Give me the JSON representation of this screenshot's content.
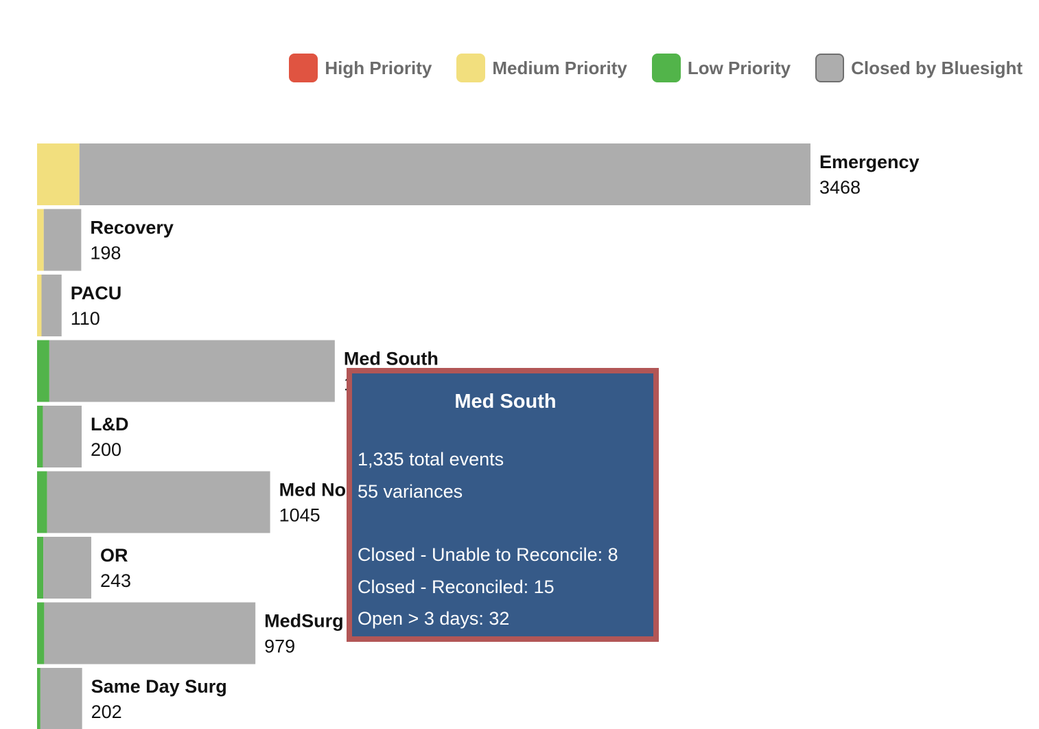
{
  "legend": [
    {
      "label": "High Priority",
      "color": "#e05441",
      "icon": "high-priority-swatch"
    },
    {
      "label": "Medium Priority",
      "color": "#f2df7e",
      "icon": "medium-priority-swatch"
    },
    {
      "label": "Low Priority",
      "color": "#52b44a",
      "icon": "low-priority-swatch"
    },
    {
      "label": "Closed by Bluesight",
      "color": "#adadad",
      "icon": "closed-swatch"
    }
  ],
  "chart_data": {
    "type": "bar",
    "orientation": "horizontal",
    "stacked": true,
    "grid": false,
    "legend_position": "top-right",
    "categories": [
      "Emergency",
      "Recovery",
      "PACU",
      "Med South",
      "L&D",
      "Med North",
      "OR",
      "MedSurg",
      "Same Day Surg"
    ],
    "totals": [
      3468,
      198,
      110,
      1335,
      200,
      1045,
      243,
      979,
      202
    ],
    "totals_labels": [
      "3468",
      "198",
      "110",
      "1335",
      "200",
      "1045",
      "243",
      "979",
      "202"
    ],
    "series": [
      {
        "name": "High Priority",
        "color": "#e05441",
        "values": [
          0,
          0,
          0,
          0,
          0,
          0,
          0,
          0,
          0
        ]
      },
      {
        "name": "Medium Priority",
        "color": "#f2df7e",
        "values": [
          190,
          30,
          20,
          0,
          0,
          0,
          0,
          0,
          0
        ]
      },
      {
        "name": "Low Priority",
        "color": "#52b44a",
        "values": [
          0,
          0,
          0,
          55,
          26,
          45,
          28,
          32,
          15
        ]
      },
      {
        "name": "Closed by Bluesight",
        "color": "#adadad",
        "values": [
          3278,
          168,
          90,
          1280,
          174,
          1000,
          215,
          947,
          187
        ]
      }
    ]
  },
  "tooltip": {
    "title": "Med South",
    "metrics": [
      "1,335 total events",
      "55 variances"
    ],
    "details": [
      "Closed - Unable to Reconcile: 8",
      "Closed - Reconciled: 15",
      "Open > 3 days: 32"
    ]
  }
}
